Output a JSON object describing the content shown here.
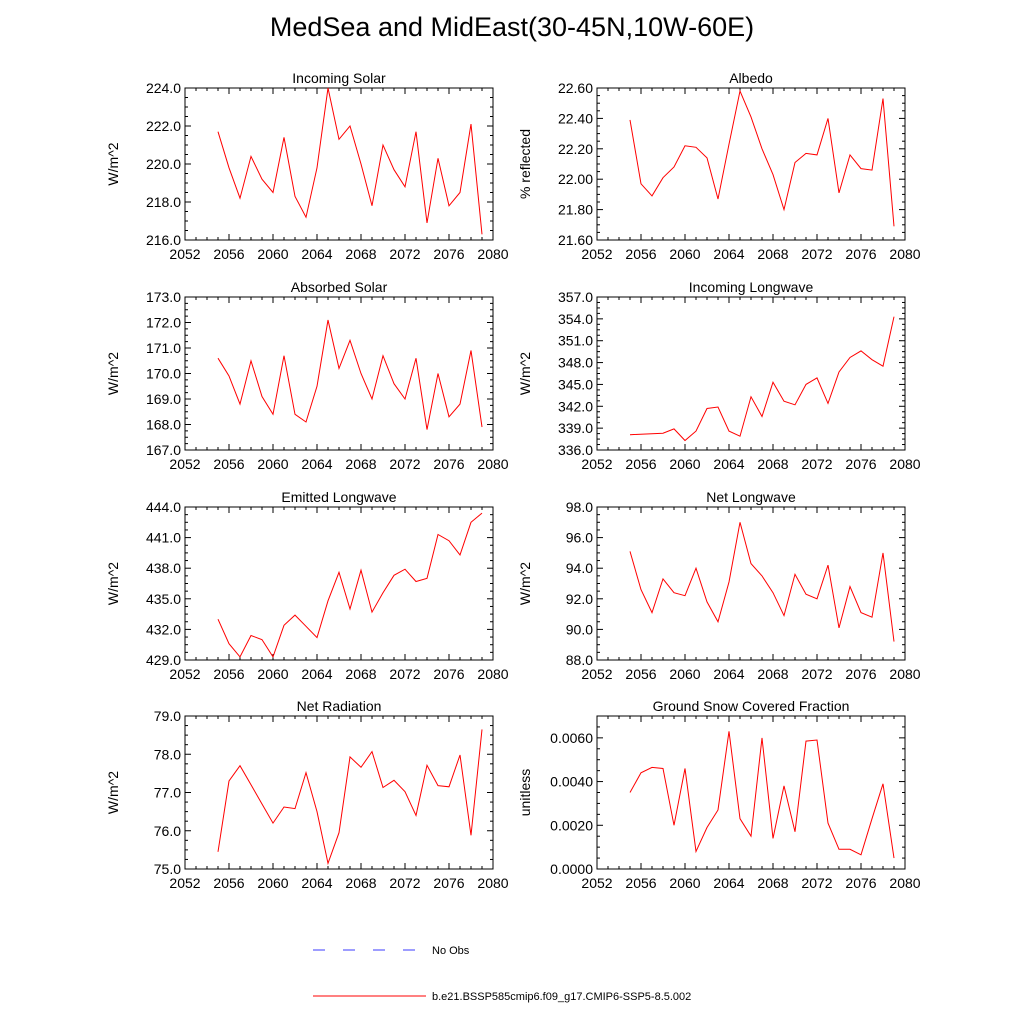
{
  "title": "MedSea and MidEast(30-45N,10W-60E)",
  "legend": [
    {
      "label": "No Obs",
      "color": "#3b3bff",
      "dash": true
    },
    {
      "label": "b.e21.BSSP585cmip6.f09_g17.CMIP6-SSP5-8.5.002",
      "color": "#ff0000",
      "dash": false
    }
  ],
  "chart_data": [
    {
      "type": "line",
      "title": "Incoming Solar",
      "ylabel": "W/m^2",
      "xlim": [
        2052,
        2080
      ],
      "ylim": [
        216.0,
        224.0
      ],
      "xticks": [
        2052,
        2056,
        2060,
        2064,
        2068,
        2072,
        2076,
        2080
      ],
      "yticks": [
        "216.0",
        "218.0",
        "220.0",
        "222.0",
        "224.0"
      ],
      "x": [
        2055,
        2056,
        2057,
        2058,
        2059,
        2060,
        2061,
        2062,
        2063,
        2064,
        2065,
        2066,
        2067,
        2068,
        2069,
        2070,
        2071,
        2072,
        2073,
        2074,
        2075,
        2076,
        2077,
        2078,
        2079
      ],
      "series": [
        {
          "color": "#ff0000",
          "values": [
            221.7,
            219.8,
            218.2,
            220.4,
            219.2,
            218.5,
            221.4,
            218.3,
            217.2,
            219.8,
            224.0,
            221.3,
            222.0,
            220.0,
            217.8,
            221.0,
            219.7,
            218.8,
            221.7,
            216.9,
            220.3,
            217.8,
            218.5,
            222.1,
            216.3
          ]
        }
      ]
    },
    {
      "type": "line",
      "title": "Albedo",
      "ylabel": "% reflected",
      "xlim": [
        2052,
        2080
      ],
      "ylim": [
        21.6,
        22.6
      ],
      "xticks": [
        2052,
        2056,
        2060,
        2064,
        2068,
        2072,
        2076,
        2080
      ],
      "yticks": [
        "21.60",
        "21.80",
        "22.00",
        "22.20",
        "22.40",
        "22.60"
      ],
      "x": [
        2055,
        2056,
        2057,
        2058,
        2059,
        2060,
        2061,
        2062,
        2063,
        2064,
        2065,
        2066,
        2067,
        2068,
        2069,
        2070,
        2071,
        2072,
        2073,
        2074,
        2075,
        2076,
        2077,
        2078,
        2079
      ],
      "series": [
        {
          "color": "#ff0000",
          "values": [
            22.39,
            21.97,
            21.89,
            22.01,
            22.08,
            22.22,
            22.21,
            22.14,
            21.87,
            22.23,
            22.58,
            22.41,
            22.2,
            22.03,
            21.8,
            22.11,
            22.17,
            22.16,
            22.4,
            21.91,
            22.16,
            22.07,
            22.06,
            22.53,
            21.69
          ]
        }
      ]
    },
    {
      "type": "line",
      "title": "Absorbed Solar",
      "ylabel": "W/m^2",
      "xlim": [
        2052,
        2080
      ],
      "ylim": [
        167.0,
        173.0
      ],
      "xticks": [
        2052,
        2056,
        2060,
        2064,
        2068,
        2072,
        2076,
        2080
      ],
      "yticks": [
        "167.0",
        "168.0",
        "169.0",
        "170.0",
        "171.0",
        "172.0",
        "173.0"
      ],
      "x": [
        2055,
        2056,
        2057,
        2058,
        2059,
        2060,
        2061,
        2062,
        2063,
        2064,
        2065,
        2066,
        2067,
        2068,
        2069,
        2070,
        2071,
        2072,
        2073,
        2074,
        2075,
        2076,
        2077,
        2078,
        2079
      ],
      "series": [
        {
          "color": "#ff0000",
          "values": [
            170.6,
            169.9,
            168.8,
            170.5,
            169.1,
            168.4,
            170.7,
            168.4,
            168.1,
            169.5,
            172.1,
            170.2,
            171.3,
            170.0,
            169.0,
            170.7,
            169.6,
            169.0,
            170.6,
            167.8,
            170.0,
            168.3,
            168.8,
            170.9,
            167.9
          ]
        }
      ]
    },
    {
      "type": "line",
      "title": "Incoming Longwave",
      "ylabel": "W/m^2",
      "xlim": [
        2052,
        2080
      ],
      "ylim": [
        336.0,
        357.0
      ],
      "xticks": [
        2052,
        2056,
        2060,
        2064,
        2068,
        2072,
        2076,
        2080
      ],
      "yticks": [
        "336.0",
        "339.0",
        "342.0",
        "345.0",
        "348.0",
        "351.0",
        "354.0",
        "357.0"
      ],
      "x": [
        2055,
        2058,
        2059,
        2060,
        2061,
        2062,
        2063,
        2064,
        2065,
        2066,
        2067,
        2068,
        2069,
        2070,
        2071,
        2072,
        2073,
        2074,
        2075,
        2076,
        2077,
        2078,
        2079
      ],
      "series": [
        {
          "color": "#ff0000",
          "values": [
            338.1,
            338.3,
            338.9,
            337.3,
            338.6,
            341.7,
            341.9,
            338.6,
            337.9,
            343.3,
            340.6,
            345.3,
            342.7,
            342.2,
            345.0,
            345.9,
            342.4,
            346.7,
            348.7,
            349.6,
            348.4,
            347.5,
            354.3
          ]
        }
      ]
    },
    {
      "type": "line",
      "title": "Emitted Longwave",
      "ylabel": "W/m^2",
      "xlim": [
        2052,
        2080
      ],
      "ylim": [
        429.0,
        444.0
      ],
      "xticks": [
        2052,
        2056,
        2060,
        2064,
        2068,
        2072,
        2076,
        2080
      ],
      "yticks": [
        "429.0",
        "432.0",
        "435.0",
        "438.0",
        "441.0",
        "444.0"
      ],
      "x": [
        2055,
        2056,
        2057,
        2058,
        2059,
        2060,
        2061,
        2062,
        2063,
        2064,
        2065,
        2066,
        2067,
        2068,
        2069,
        2070,
        2071,
        2072,
        2073,
        2074,
        2075,
        2076,
        2077,
        2078,
        2079
      ],
      "series": [
        {
          "color": "#ff0000",
          "values": [
            433.0,
            430.6,
            429.3,
            431.4,
            431.0,
            429.3,
            432.4,
            433.4,
            432.3,
            431.2,
            434.8,
            437.6,
            434.0,
            437.8,
            433.7,
            435.6,
            437.3,
            437.9,
            436.7,
            437.0,
            441.3,
            440.7,
            439.3,
            442.5,
            443.4
          ]
        }
      ]
    },
    {
      "type": "line",
      "title": "Net Longwave",
      "ylabel": "W/m^2",
      "xlim": [
        2052,
        2080
      ],
      "ylim": [
        88.0,
        98.0
      ],
      "xticks": [
        2052,
        2056,
        2060,
        2064,
        2068,
        2072,
        2076,
        2080
      ],
      "yticks": [
        "88.0",
        "90.0",
        "92.0",
        "94.0",
        "96.0",
        "98.0"
      ],
      "x": [
        2055,
        2056,
        2057,
        2058,
        2059,
        2060,
        2061,
        2062,
        2063,
        2064,
        2065,
        2066,
        2067,
        2068,
        2069,
        2070,
        2071,
        2072,
        2073,
        2074,
        2075,
        2076,
        2077,
        2078,
        2079
      ],
      "series": [
        {
          "color": "#ff0000",
          "values": [
            95.1,
            92.6,
            91.1,
            93.3,
            92.4,
            92.2,
            94.0,
            91.8,
            90.5,
            93.1,
            97.0,
            94.3,
            93.5,
            92.4,
            90.9,
            93.6,
            92.3,
            92.0,
            94.2,
            90.1,
            92.8,
            91.1,
            90.8,
            95.0,
            89.2
          ]
        }
      ]
    },
    {
      "type": "line",
      "title": "Net Radiation",
      "ylabel": "W/m^2",
      "xlim": [
        2052,
        2080
      ],
      "ylim": [
        75.0,
        79.0
      ],
      "xticks": [
        2052,
        2056,
        2060,
        2064,
        2068,
        2072,
        2076,
        2080
      ],
      "yticks": [
        "75.0",
        "76.0",
        "77.0",
        "78.0",
        "79.0"
      ],
      "x": [
        2055,
        2056,
        2057,
        2058,
        2059,
        2060,
        2061,
        2062,
        2063,
        2064,
        2065,
        2066,
        2067,
        2068,
        2069,
        2070,
        2071,
        2072,
        2073,
        2074,
        2075,
        2076,
        2077,
        2078,
        2079
      ],
      "series": [
        {
          "color": "#ff0000",
          "values": [
            75.45,
            77.3,
            77.7,
            77.2,
            76.7,
            76.2,
            76.62,
            76.58,
            77.52,
            76.5,
            75.15,
            75.95,
            77.93,
            77.66,
            78.07,
            77.13,
            77.32,
            77.02,
            76.4,
            77.71,
            77.18,
            77.15,
            77.98,
            75.88,
            78.65
          ]
        }
      ]
    },
    {
      "type": "line",
      "title": "Ground Snow Covered Fraction",
      "ylabel": "unitless",
      "xlim": [
        2052,
        2080
      ],
      "ylim": [
        0.0,
        0.007
      ],
      "xticks": [
        2052,
        2056,
        2060,
        2064,
        2068,
        2072,
        2076,
        2080
      ],
      "yticks": [
        "0.0000",
        "0.0020",
        "0.0040",
        "0.0060"
      ],
      "x": [
        2055,
        2056,
        2057,
        2058,
        2059,
        2060,
        2061,
        2062,
        2063,
        2064,
        2065,
        2066,
        2067,
        2068,
        2069,
        2070,
        2071,
        2072,
        2073,
        2074,
        2075,
        2076,
        2077,
        2078,
        2079
      ],
      "series": [
        {
          "color": "#ff0000",
          "values": [
            0.0035,
            0.0044,
            0.00465,
            0.0046,
            0.002,
            0.0046,
            0.0008,
            0.0019,
            0.0027,
            0.0063,
            0.0023,
            0.0015,
            0.006,
            0.0014,
            0.0038,
            0.0017,
            0.00585,
            0.0059,
            0.0021,
            0.0009,
            0.0009,
            0.00065,
            0.0023,
            0.0039,
            0.0005
          ]
        }
      ]
    }
  ]
}
